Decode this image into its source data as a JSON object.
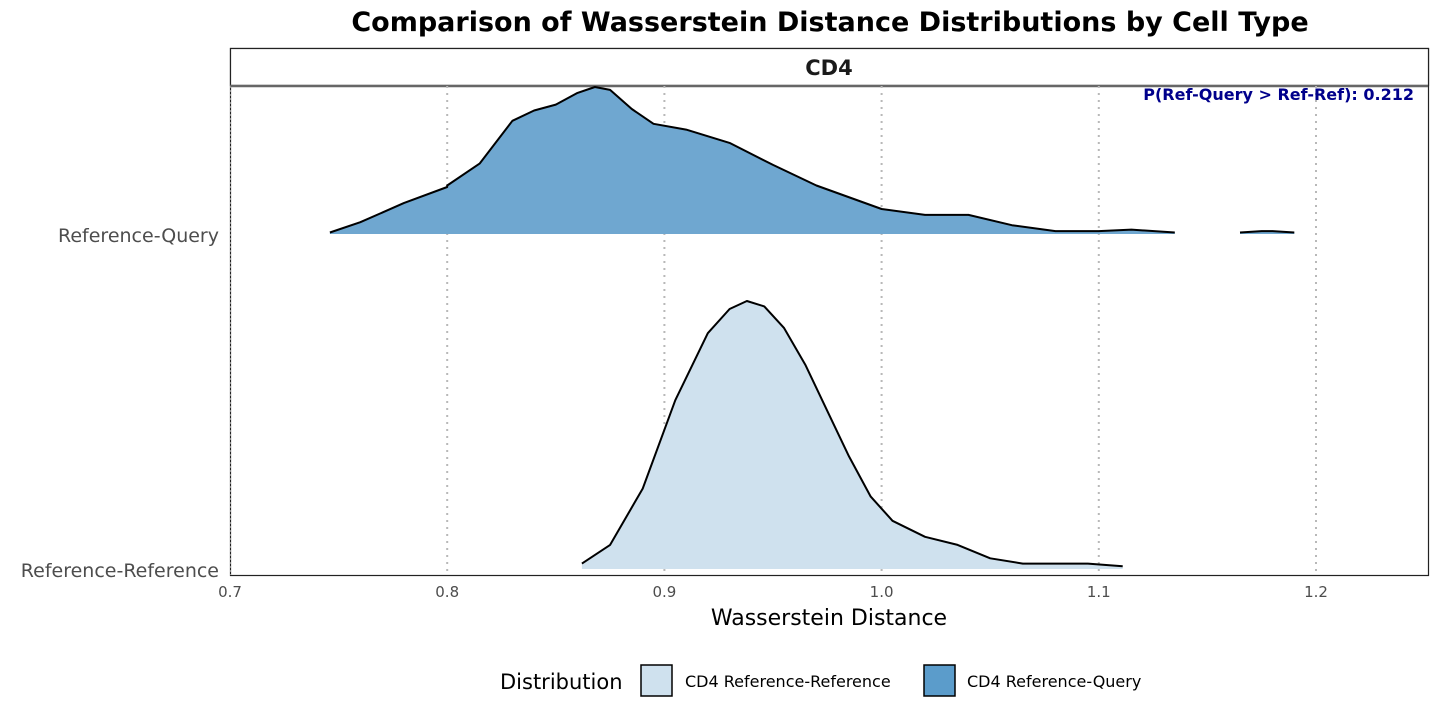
{
  "chart_data": {
    "type": "area",
    "subtype": "ridgeline-density",
    "title": "Comparison of Wasserstein Distance Distributions by Cell Type",
    "facet_label": "CD4",
    "annotation": "P(Ref-Query > Ref-Ref): 0.212",
    "xlabel": "Wasserstein Distance",
    "ylabel": "",
    "xlim": [
      0.7,
      1.25
    ],
    "x_ticks": [
      0.7,
      0.8,
      0.9,
      1.0,
      1.1,
      1.2
    ],
    "x_tick_labels": [
      "0.7",
      "0.8",
      "0.9",
      "1.0",
      "1.1",
      "1.2"
    ],
    "grid": "vertical dotted at major x ticks",
    "y_categories": [
      "Reference-Query",
      "Reference-Reference"
    ],
    "legend": {
      "title": "Distribution",
      "position": "bottom",
      "items": [
        {
          "label": "CD4 Reference-Reference",
          "color": "#cfe1ee"
        },
        {
          "label": "CD4 Reference-Query",
          "color": "#5b9ccb"
        }
      ]
    },
    "colors": {
      "ref_ref": "#cfe1ee",
      "ref_query": "#6fa7d0",
      "outline": "#000000",
      "annotation": "#00008b"
    },
    "series": [
      {
        "name": "CD4 Reference-Query",
        "row": "Reference-Query",
        "density_scale": "relative ridge height (1 = peak)",
        "segments": [
          {
            "x": [
              0.746,
              0.76,
              0.78,
              0.8,
              0.8,
              0.815,
              0.83,
              0.84,
              0.85,
              0.86,
              0.868,
              0.875,
              0.885,
              0.895,
              0.91,
              0.93,
              0.95,
              0.97,
              1.0,
              1.02,
              1.04,
              1.06,
              1.08,
              1.1,
              1.115,
              1.135
            ],
            "y": [
              0.01,
              0.08,
              0.21,
              0.32,
              0.33,
              0.48,
              0.77,
              0.84,
              0.88,
              0.96,
              1.0,
              0.98,
              0.85,
              0.75,
              0.71,
              0.62,
              0.47,
              0.33,
              0.17,
              0.13,
              0.13,
              0.06,
              0.02,
              0.02,
              0.03,
              0.01
            ]
          },
          {
            "x": [
              1.165,
              1.175,
              1.18,
              1.19
            ],
            "y": [
              0.01,
              0.02,
              0.02,
              0.01
            ]
          }
        ]
      },
      {
        "name": "CD4 Reference-Reference",
        "row": "Reference-Reference",
        "density_scale": "relative ridge height (1 = peak)",
        "segments": [
          {
            "x": [
              0.862,
              0.875,
              0.89,
              0.905,
              0.92,
              0.93,
              0.938,
              0.946,
              0.955,
              0.965,
              0.975,
              0.985,
              0.995,
              1.005,
              1.02,
              1.035,
              1.05,
              1.065,
              1.08,
              1.095,
              1.111
            ],
            "y": [
              0.02,
              0.09,
              0.3,
              0.63,
              0.88,
              0.97,
              1.0,
              0.98,
              0.9,
              0.76,
              0.59,
              0.42,
              0.27,
              0.18,
              0.12,
              0.09,
              0.04,
              0.02,
              0.02,
              0.02,
              0.01
            ]
          }
        ]
      }
    ]
  }
}
